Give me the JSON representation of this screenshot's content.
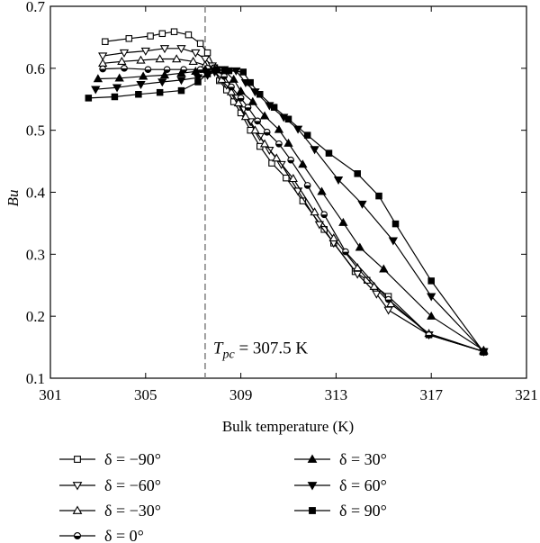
{
  "chart_data": {
    "type": "line",
    "xlabel": "Bulk temperature (K)",
    "ylabel": "Bu",
    "xlim": [
      301,
      321
    ],
    "ylim": [
      0.1,
      0.7
    ],
    "x_ticks": [
      "301",
      "305",
      "309",
      "313",
      "317",
      "321"
    ],
    "y_ticks": [
      "0.1",
      "0.2",
      "0.3",
      "0.4",
      "0.5",
      "0.6",
      "0.7"
    ],
    "grid": false,
    "legend_position": "bottom",
    "annotation": {
      "vline_x": 307.5,
      "label_prefix": "T",
      "label_sub": "pc",
      "label_suffix": " = 307.5 K"
    },
    "series": [
      {
        "name": "δ = −90°",
        "marker": "square-open",
        "points": [
          [
            303.3,
            0.643
          ],
          [
            304.3,
            0.648
          ],
          [
            305.2,
            0.652
          ],
          [
            305.7,
            0.656
          ],
          [
            306.2,
            0.659
          ],
          [
            306.8,
            0.654
          ],
          [
            307.3,
            0.64
          ],
          [
            307.6,
            0.625
          ],
          [
            307.9,
            0.601
          ],
          [
            308.1,
            0.58
          ],
          [
            308.4,
            0.565
          ],
          [
            308.7,
            0.546
          ],
          [
            309.0,
            0.528
          ],
          [
            309.4,
            0.5
          ],
          [
            309.8,
            0.474
          ],
          [
            310.3,
            0.447
          ],
          [
            310.9,
            0.423
          ],
          [
            311.6,
            0.386
          ],
          [
            312.5,
            0.34
          ],
          [
            312.9,
            0.318
          ],
          [
            313.8,
            0.272
          ],
          [
            314.3,
            0.258
          ],
          [
            315.2,
            0.232
          ],
          [
            316.9,
            0.17
          ],
          [
            319.2,
            0.143
          ]
        ]
      },
      {
        "name": "δ = −60°",
        "marker": "triangle-down-open",
        "points": [
          [
            303.2,
            0.62
          ],
          [
            304.1,
            0.625
          ],
          [
            305.0,
            0.628
          ],
          [
            305.8,
            0.632
          ],
          [
            306.5,
            0.632
          ],
          [
            307.1,
            0.625
          ],
          [
            307.5,
            0.615
          ],
          [
            307.8,
            0.604
          ],
          [
            308.1,
            0.588
          ],
          [
            308.4,
            0.573
          ],
          [
            308.8,
            0.552
          ],
          [
            309.1,
            0.533
          ],
          [
            309.4,
            0.514
          ],
          [
            309.8,
            0.49
          ],
          [
            310.2,
            0.468
          ],
          [
            310.7,
            0.445
          ],
          [
            311.4,
            0.402
          ],
          [
            312.3,
            0.348
          ],
          [
            312.9,
            0.318
          ],
          [
            313.9,
            0.268
          ],
          [
            314.7,
            0.236
          ],
          [
            315.2,
            0.21
          ],
          [
            316.9,
            0.17
          ],
          [
            319.2,
            0.143
          ]
        ]
      },
      {
        "name": "δ = −30°",
        "marker": "triangle-up-open",
        "points": [
          [
            303.2,
            0.608
          ],
          [
            304.0,
            0.611
          ],
          [
            304.8,
            0.613
          ],
          [
            305.6,
            0.615
          ],
          [
            306.3,
            0.615
          ],
          [
            307.0,
            0.611
          ],
          [
            307.5,
            0.605
          ],
          [
            307.8,
            0.599
          ],
          [
            308.2,
            0.582
          ],
          [
            308.6,
            0.562
          ],
          [
            308.9,
            0.544
          ],
          [
            309.2,
            0.522
          ],
          [
            309.6,
            0.5
          ],
          [
            310.0,
            0.478
          ],
          [
            310.5,
            0.455
          ],
          [
            311.2,
            0.422
          ],
          [
            312.1,
            0.368
          ],
          [
            312.9,
            0.326
          ],
          [
            313.9,
            0.278
          ],
          [
            314.6,
            0.248
          ],
          [
            315.3,
            0.22
          ],
          [
            316.9,
            0.172
          ],
          [
            319.2,
            0.143
          ]
        ]
      },
      {
        "name": "δ = 0°",
        "marker": "circle-half",
        "points": [
          [
            303.2,
            0.599
          ],
          [
            304.1,
            0.6
          ],
          [
            305.1,
            0.598
          ],
          [
            305.9,
            0.598
          ],
          [
            306.6,
            0.598
          ],
          [
            307.3,
            0.598
          ],
          [
            307.6,
            0.6
          ],
          [
            307.9,
            0.601
          ],
          [
            308.3,
            0.587
          ],
          [
            308.6,
            0.57
          ],
          [
            309.0,
            0.552
          ],
          [
            309.3,
            0.537
          ],
          [
            309.7,
            0.515
          ],
          [
            310.1,
            0.497
          ],
          [
            310.6,
            0.478
          ],
          [
            311.1,
            0.452
          ],
          [
            311.8,
            0.411
          ],
          [
            312.5,
            0.364
          ],
          [
            313.4,
            0.304
          ],
          [
            315.2,
            0.227
          ],
          [
            316.9,
            0.17
          ],
          [
            319.2,
            0.143
          ]
        ]
      },
      {
        "name": "δ = 30°",
        "marker": "triangle-up-filled",
        "points": [
          [
            303.0,
            0.583
          ],
          [
            303.9,
            0.584
          ],
          [
            304.9,
            0.587
          ],
          [
            305.8,
            0.589
          ],
          [
            306.5,
            0.592
          ],
          [
            307.1,
            0.595
          ],
          [
            307.5,
            0.598
          ],
          [
            307.9,
            0.599
          ],
          [
            308.3,
            0.596
          ],
          [
            308.7,
            0.582
          ],
          [
            309.0,
            0.563
          ],
          [
            309.5,
            0.546
          ],
          [
            310.0,
            0.523
          ],
          [
            310.6,
            0.501
          ],
          [
            311.0,
            0.479
          ],
          [
            311.6,
            0.445
          ],
          [
            312.4,
            0.401
          ],
          [
            313.3,
            0.351
          ],
          [
            314.0,
            0.311
          ],
          [
            315.0,
            0.276
          ],
          [
            317.0,
            0.2
          ],
          [
            319.2,
            0.145
          ]
        ]
      },
      {
        "name": "δ = 60°",
        "marker": "triangle-down-filled",
        "points": [
          [
            302.9,
            0.566
          ],
          [
            303.8,
            0.569
          ],
          [
            304.8,
            0.574
          ],
          [
            305.7,
            0.578
          ],
          [
            306.5,
            0.581
          ],
          [
            307.2,
            0.585
          ],
          [
            307.6,
            0.589
          ],
          [
            307.9,
            0.594
          ],
          [
            308.3,
            0.598
          ],
          [
            308.8,
            0.596
          ],
          [
            309.2,
            0.577
          ],
          [
            309.6,
            0.562
          ],
          [
            310.2,
            0.54
          ],
          [
            310.8,
            0.521
          ],
          [
            311.4,
            0.502
          ],
          [
            312.1,
            0.469
          ],
          [
            313.1,
            0.42
          ],
          [
            314.1,
            0.381
          ],
          [
            315.4,
            0.322
          ],
          [
            317.0,
            0.232
          ],
          [
            319.2,
            0.143
          ]
        ]
      },
      {
        "name": "δ = 90°",
        "marker": "square-filled",
        "points": [
          [
            302.6,
            0.552
          ],
          [
            303.7,
            0.554
          ],
          [
            304.7,
            0.558
          ],
          [
            305.6,
            0.561
          ],
          [
            306.5,
            0.564
          ],
          [
            307.2,
            0.578
          ],
          [
            307.6,
            0.591
          ],
          [
            308.0,
            0.598
          ],
          [
            308.5,
            0.596
          ],
          [
            309.1,
            0.594
          ],
          [
            309.4,
            0.577
          ],
          [
            309.8,
            0.558
          ],
          [
            310.4,
            0.537
          ],
          [
            311.0,
            0.518
          ],
          [
            311.8,
            0.492
          ],
          [
            312.7,
            0.463
          ],
          [
            313.9,
            0.43
          ],
          [
            314.8,
            0.394
          ],
          [
            315.5,
            0.349
          ],
          [
            317.0,
            0.257
          ],
          [
            319.2,
            0.142
          ]
        ]
      }
    ]
  }
}
